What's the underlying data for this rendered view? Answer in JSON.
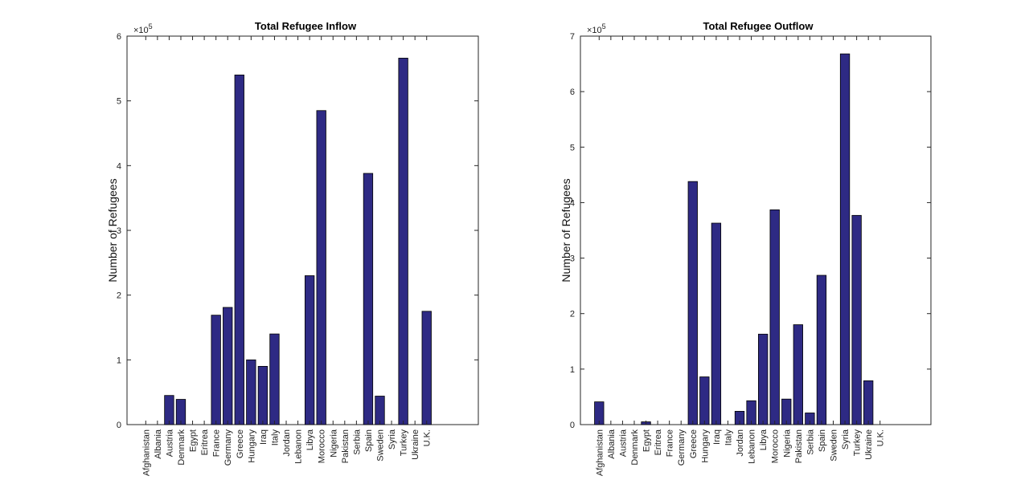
{
  "chart_data": [
    {
      "type": "bar",
      "title": "Total Refugee Inflow",
      "xlabel": "",
      "ylabel": "Number of Refugees",
      "ylim": [
        0,
        600000
      ],
      "yticks": [
        0,
        1,
        2,
        3,
        4,
        5,
        6
      ],
      "exponent_label": "×10",
      "exponent": "5",
      "grid": false,
      "bar_color": "#2e2a84",
      "categories": [
        "Afghanistan",
        "Albania",
        "Austria",
        "Denmark",
        "Egypt",
        "Eritrea",
        "France",
        "Germany",
        "Greece",
        "Hungary",
        "Iraq",
        "Italy",
        "Jordan",
        "Lebanon",
        "Libya",
        "Morocco",
        "Nigeria",
        "Pakistan",
        "Serbia",
        "Spain",
        "Sweden",
        "Syria",
        "Turkey",
        "Ukraine",
        "U.K."
      ],
      "values": [
        0,
        0,
        45000,
        39000,
        0,
        0,
        169000,
        181000,
        540000,
        100000,
        90000,
        140000,
        0,
        0,
        230000,
        485000,
        0,
        0,
        0,
        388000,
        44000,
        0,
        566000,
        0,
        175000
      ]
    },
    {
      "type": "bar",
      "title": "Total Refugee Outflow",
      "xlabel": "",
      "ylabel": "Number of Refugees",
      "ylim": [
        0,
        700000
      ],
      "yticks": [
        0,
        1,
        2,
        3,
        4,
        5,
        6,
        7
      ],
      "exponent_label": "×10",
      "exponent": "5",
      "grid": false,
      "bar_color": "#2e2a84",
      "categories": [
        "Afghanistan",
        "Albania",
        "Austria",
        "Denmark",
        "Egypt",
        "Eritrea",
        "France",
        "Germany",
        "Greece",
        "Hungary",
        "Iraq",
        "Italy",
        "Jordan",
        "Lebanon",
        "Libya",
        "Morocco",
        "Nigeria",
        "Pakistan",
        "Serbia",
        "Spain",
        "Sweden",
        "Syria",
        "Turkey",
        "Ukraine",
        "U.K."
      ],
      "values": [
        41000,
        0,
        0,
        0,
        5000,
        0,
        0,
        0,
        438000,
        86000,
        363000,
        0,
        24000,
        43000,
        163000,
        387000,
        46000,
        180000,
        21000,
        269000,
        0,
        668000,
        377000,
        79000,
        0
      ]
    }
  ]
}
